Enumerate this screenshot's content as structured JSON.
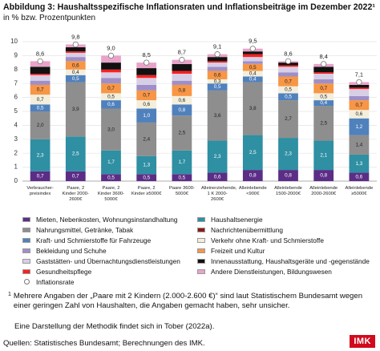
{
  "chart_data": {
    "type": "stacked_bar",
    "title": "Abbildung 3: Haushaltsspezifische Inflationsraten und Inflationsbeiträge im Dezember 2022¹",
    "subtitle": "in % bzw. Prozentpunkten",
    "categories": [
      "Verbraucher-preisindex",
      "Paare, 2 Kinder 2000-2600€",
      "Paare, 2 Kinder 3600-5000€",
      "Paare, 2 Kinder ≥5000€",
      "Paare 3600-5000€",
      "Alleinerziehende, 1 K 2000-2600€",
      "Alleinlebende <900€",
      "Alleinlebende 1500-2000€",
      "Alleinlebende 2000-2600€",
      "Alleinlebende ≥5000€"
    ],
    "ylim": [
      0,
      10
    ],
    "yticks": [
      0,
      1,
      2,
      3,
      4,
      5,
      6,
      7,
      8,
      9,
      10
    ],
    "grid": true,
    "series": [
      {
        "name": "Mieten, Nebenkosten, Wohnungsinstandhaltung",
        "color": "#5c2d86",
        "values": [
          0.7,
          0.7,
          0.5,
          0.5,
          0.5,
          0.6,
          0.8,
          0.8,
          0.8,
          0.6
        ],
        "value_labels": [
          "0,7",
          "0,7",
          "0,5",
          "0,5",
          "0,5",
          "0,6",
          "0,8",
          "0,8",
          "0,8",
          "0,6"
        ]
      },
      {
        "name": "Haushaltsenergie",
        "color": "#2f8fa3",
        "values": [
          2.3,
          2.5,
          1.7,
          1.3,
          1.7,
          2.3,
          2.5,
          2.3,
          2.1,
          1.3
        ],
        "value_labels": [
          "2,3",
          "2,5",
          "1,7",
          "1,3",
          "1,7",
          "2,3",
          "2,5",
          "2,3",
          "2,1",
          "1,3"
        ]
      },
      {
        "name": "Nahrungsmittel, Getränke, Tabak",
        "color": "#8e8e8e",
        "values": [
          2.0,
          3.9,
          3.0,
          2.4,
          2.5,
          3.6,
          3.8,
          2.7,
          2.5,
          1.4
        ],
        "value_labels": [
          "2,0",
          "3,9",
          "3,0",
          "2,4",
          "2,5",
          "3,6",
          "3,8",
          "2,7",
          "2,5",
          "1,4"
        ]
      },
      {
        "name": "Kraft- und Schmierstoffe für Fahrzeuge",
        "color": "#4f81bd",
        "values": [
          0.5,
          0.5,
          0.6,
          1.0,
          0.8,
          0.5,
          0.4,
          0.5,
          0.4,
          1.2
        ],
        "value_labels": [
          "0,5",
          "0,5",
          "0,6",
          "1,0",
          "0,8",
          "0,5",
          "0,4",
          "0,5",
          "0,4",
          "1,2"
        ]
      },
      {
        "name": "Verkehr ohne Kraft- und Schmierstoffe",
        "color": "#f3efdc",
        "values": [
          0.7,
          0.4,
          0.5,
          0.6,
          0.6,
          0.3,
          0.4,
          0.5,
          0.5,
          0.6
        ],
        "value_labels": [
          "0,7",
          "0,4",
          "0,5",
          "0,6",
          "0,6",
          "0,3",
          "0,4",
          "0,5",
          "0,5",
          "0,6"
        ]
      },
      {
        "name": "Freizeit und Kultur",
        "color": "#f79646",
        "values": [
          0.7,
          0.6,
          0.7,
          0.7,
          0.8,
          0.6,
          0.5,
          0.7,
          0.7,
          0.7
        ],
        "value_labels": [
          "0,7",
          "0,6",
          "0,7",
          "0,7",
          "0,8",
          "0,6",
          "0,5",
          "0,7",
          "0,7",
          "0,7"
        ]
      },
      {
        "name": "Bekleidung und Schuhe",
        "color": "#9f8fc8",
        "values": [
          0.3,
          0.3,
          0.4,
          0.4,
          0.3,
          0.3,
          0.2,
          0.3,
          0.3,
          0.3
        ]
      },
      {
        "name": "Gaststätten- und Übernachtungsdienstleistungen",
        "color": "#d6cfe6",
        "values": [
          0.4,
          0.3,
          0.4,
          0.5,
          0.5,
          0.3,
          0.3,
          0.4,
          0.4,
          0.5
        ]
      },
      {
        "name": "Nachrichtenübermittlung",
        "color": "#8b1a1a",
        "values": [
          0,
          0,
          0,
          0,
          0,
          0,
          0,
          0,
          0,
          0
        ]
      },
      {
        "name": "Gesundheitspflege",
        "color": "#ff2020",
        "values": [
          0.1,
          0.1,
          0.2,
          0.2,
          0.2,
          0.1,
          0.2,
          0.1,
          0.1,
          0.1
        ]
      },
      {
        "name": "Innenausstattung, Haushaltsgeräte und -gegenstände",
        "color": "#111111",
        "values": [
          0.5,
          0.3,
          0.5,
          0.5,
          0.5,
          0.3,
          0.2,
          0.2,
          0.4,
          0.2
        ]
      },
      {
        "name": "Andere Dienstleistungen, Bildungswesen",
        "color": "#e9a3c9",
        "values": [
          0.4,
          0.2,
          0.5,
          0.4,
          0.3,
          0.2,
          0.2,
          0.1,
          0.2,
          0.2
        ]
      }
    ],
    "rate": {
      "name": "Inflationsrate",
      "color": "#ffffff",
      "values": [
        8.6,
        9.8,
        9.0,
        8.5,
        8.7,
        9.1,
        9.5,
        8.6,
        8.4,
        7.1
      ],
      "value_labels": [
        "8,6",
        "9,8",
        "9,0",
        "8,5",
        "8,7",
        "9,1",
        "9,5",
        "8,6",
        "8,4",
        "7,1"
      ]
    },
    "footnote": "Mehrere Angaben der „Paare mit 2 Kindern (2.000-2.600 €)“ sind laut Statistischem Bundesamt wegen einer geringen Zahl von Haushalten, die Angaben gemacht haben, sehr unsicher.",
    "footnote_mark": "1",
    "note": "Eine Darstellung der Methodik findet sich in Tober (2022a).",
    "source": "Quellen: Statistisches Bundesamt; Berechnungen des IMK.",
    "logo": "IMK"
  }
}
